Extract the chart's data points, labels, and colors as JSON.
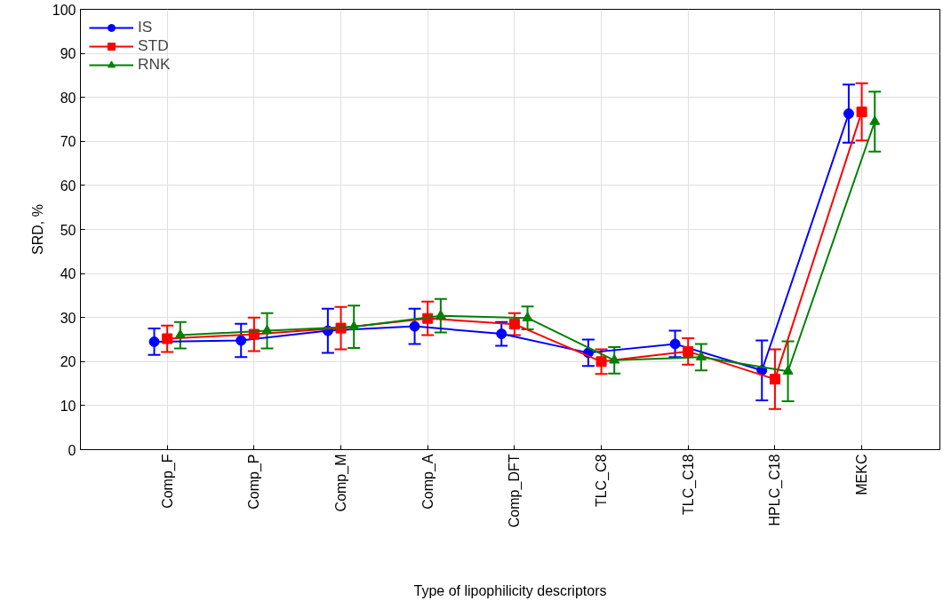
{
  "chart_data": {
    "type": "line",
    "xlabel": "Type of lipophilicity descriptors",
    "ylabel": "SRD, %",
    "categories": [
      "Comp_F",
      "Comp_P",
      "Comp_M",
      "Comp_A",
      "Comp_DFT",
      "TLC_C8",
      "TLC_C18",
      "HPLC_C18",
      "MEKC"
    ],
    "ylim": [
      0,
      100
    ],
    "yticks": [
      0,
      10,
      20,
      30,
      40,
      50,
      60,
      70,
      80,
      90,
      100
    ],
    "grid": true,
    "legend": "top left",
    "line_style": "solid",
    "series": [
      {
        "name": "IS",
        "color": "#0000ff",
        "marker": "circle",
        "values": [
          24.5,
          24.8,
          27,
          28,
          26.3,
          22,
          24,
          18,
          76.3
        ],
        "errors": [
          3,
          3.8,
          5,
          4,
          2.7,
          3,
          3,
          6.8,
          6.6
        ]
      },
      {
        "name": "STD",
        "color": "#ff0000",
        "marker": "square",
        "values": [
          25.2,
          26.2,
          27.6,
          29.8,
          28.5,
          20,
          22.3,
          16,
          76.7
        ],
        "errors": [
          3,
          3.8,
          4.8,
          3.8,
          2.5,
          2.8,
          3,
          6.8,
          6.5
        ]
      },
      {
        "name": "RNK",
        "color": "#008000",
        "marker": "triangle",
        "values": [
          26,
          27,
          27.9,
          30.4,
          29.9,
          20.3,
          21,
          17.8,
          74.5
        ],
        "errors": [
          3,
          4,
          4.8,
          3.8,
          2.6,
          3,
          3,
          6.8,
          6.8
        ]
      }
    ]
  }
}
